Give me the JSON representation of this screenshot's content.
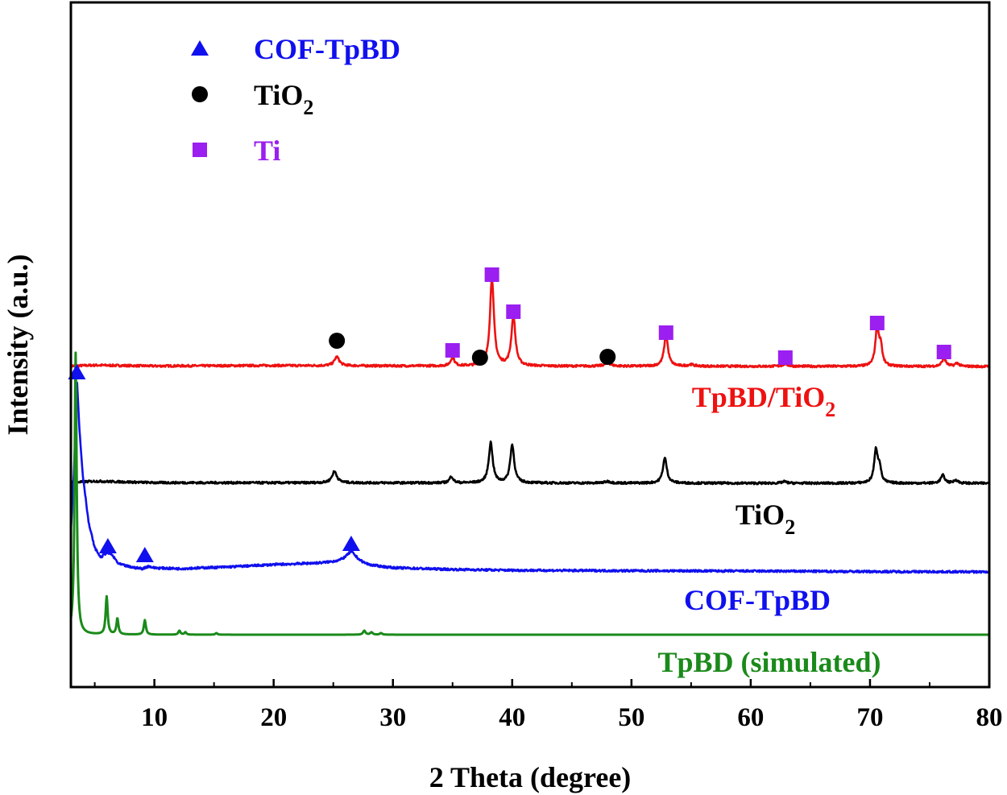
{
  "chart_data": {
    "type": "line",
    "title": "",
    "xlabel": "2 Theta (degree)",
    "ylabel": "Intensity (a.u.)",
    "xlim": [
      3,
      80
    ],
    "x_ticks": [
      10,
      20,
      30,
      40,
      50,
      60,
      70,
      80
    ],
    "y_ticks": [],
    "grid": false,
    "legend_position": "top-left",
    "legend": [
      {
        "marker": "triangle",
        "name": "COF-TpBD",
        "sub": "",
        "color": "#1010ee"
      },
      {
        "marker": "circle",
        "name": "TiO",
        "sub": "2",
        "color": "#000000"
      },
      {
        "marker": "square",
        "name": "Ti",
        "sub": "",
        "color": "#9b1ff0"
      }
    ],
    "series": [
      {
        "name": "TpBD/TiO2",
        "label": "TpBD/TiO",
        "label_sub": "2",
        "color": "#ee1111",
        "baseline": [
          [
            3,
            0.6
          ],
          [
            5,
            1.6
          ],
          [
            10,
            0.6
          ],
          [
            20,
            1.2
          ],
          [
            28,
            0.8
          ],
          [
            35,
            0.6
          ],
          [
            45,
            0.4
          ],
          [
            60,
            0.2
          ],
          [
            80,
            0.0
          ]
        ],
        "peaks": [
          [
            25.3,
            11,
            0.25
          ],
          [
            35.0,
            11,
            0.18
          ],
          [
            38.3,
            108,
            0.2
          ],
          [
            40.1,
            62,
            0.2
          ],
          [
            48.0,
            4,
            0.3
          ],
          [
            52.9,
            38,
            0.2
          ],
          [
            55.0,
            2,
            0.3
          ],
          [
            62.9,
            3,
            0.25
          ],
          [
            70.6,
            48,
            0.18
          ],
          [
            70.9,
            22,
            0.15
          ],
          [
            76.2,
            10,
            0.2
          ],
          [
            77.3,
            4,
            0.2
          ]
        ],
        "markers": [
          {
            "type": "circle",
            "x": 25.3,
            "y": 32
          },
          {
            "type": "square",
            "x": 35.0,
            "y": 20
          },
          {
            "type": "circle",
            "x": 37.3,
            "y": 11
          },
          {
            "type": "square",
            "x": 38.3,
            "y": 114
          },
          {
            "type": "square",
            "x": 40.1,
            "y": 68
          },
          {
            "type": "circle",
            "x": 48.0,
            "y": 12
          },
          {
            "type": "square",
            "x": 52.9,
            "y": 42
          },
          {
            "type": "square",
            "x": 62.9,
            "y": 11
          },
          {
            "type": "square",
            "x": 70.6,
            "y": 54
          },
          {
            "type": "square",
            "x": 76.2,
            "y": 18
          }
        ]
      },
      {
        "name": "TiO2",
        "label": "TiO",
        "label_sub": "2",
        "color": "#000000",
        "baseline": [
          [
            3,
            0.9
          ],
          [
            5,
            2.6
          ],
          [
            10,
            0.8
          ],
          [
            20,
            0.6
          ],
          [
            28,
            0.6
          ],
          [
            35,
            0.4
          ],
          [
            45,
            0.3
          ],
          [
            60,
            0.1
          ],
          [
            80,
            0.0
          ]
        ],
        "peaks": [
          [
            25.1,
            14,
            0.25
          ],
          [
            34.9,
            8,
            0.18
          ],
          [
            38.2,
            50,
            0.2
          ],
          [
            40.0,
            47,
            0.2
          ],
          [
            48.0,
            2,
            0.3
          ],
          [
            52.8,
            31,
            0.2
          ],
          [
            62.8,
            2,
            0.25
          ],
          [
            70.5,
            41,
            0.18
          ],
          [
            70.8,
            18,
            0.15
          ],
          [
            76.1,
            10,
            0.2
          ],
          [
            77.2,
            4,
            0.2
          ]
        ],
        "markers": []
      },
      {
        "name": "COF-TpBD",
        "label": "COF-TpBD",
        "label_sub": "",
        "color": "#1010ee",
        "baseline": [
          [
            3,
            52
          ],
          [
            3.3,
            140
          ],
          [
            3.5,
            242
          ],
          [
            3.7,
            180
          ],
          [
            4,
            120
          ],
          [
            4.5,
            60
          ],
          [
            5,
            30
          ],
          [
            5.5,
            18
          ],
          [
            6.0,
            24
          ],
          [
            6.4,
            22
          ],
          [
            7,
            10
          ],
          [
            8,
            6
          ],
          [
            9,
            4
          ],
          [
            9.5,
            7
          ],
          [
            10,
            5
          ],
          [
            12,
            4
          ],
          [
            16,
            6
          ],
          [
            20,
            9
          ],
          [
            24,
            11
          ],
          [
            26,
            13
          ],
          [
            27,
            12
          ],
          [
            28,
            8
          ],
          [
            30,
            5
          ],
          [
            35,
            3
          ],
          [
            40,
            2
          ],
          [
            50,
            1.4
          ],
          [
            60,
            1
          ],
          [
            70,
            0.4
          ],
          [
            80,
            0
          ]
        ],
        "peaks": [
          [
            26.5,
            12,
            0.5
          ]
        ],
        "markers": [
          {
            "type": "triangle",
            "x": 3.5,
            "y": 248
          },
          {
            "type": "triangle",
            "x": 6.1,
            "y": 32
          },
          {
            "type": "triangle",
            "x": 9.2,
            "y": 21
          },
          {
            "type": "triangle",
            "x": 26.5,
            "y": 35
          }
        ]
      },
      {
        "name": "TpBD (simulated)",
        "label": "TpBD (simulated)",
        "label_sub": "",
        "color": "#1a8a1a",
        "baseline": [
          [
            3,
            0
          ],
          [
            80,
            0
          ]
        ],
        "peaks": [
          [
            3.4,
            350,
            0.1
          ],
          [
            6.0,
            47,
            0.1
          ],
          [
            6.9,
            20,
            0.1
          ],
          [
            9.2,
            18,
            0.1
          ],
          [
            12.1,
            5,
            0.1
          ],
          [
            12.6,
            3,
            0.1
          ],
          [
            15.2,
            2,
            0.1
          ],
          [
            27.6,
            5,
            0.12
          ],
          [
            28.2,
            3,
            0.12
          ],
          [
            29.0,
            2,
            0.12
          ]
        ],
        "markers": []
      }
    ]
  }
}
